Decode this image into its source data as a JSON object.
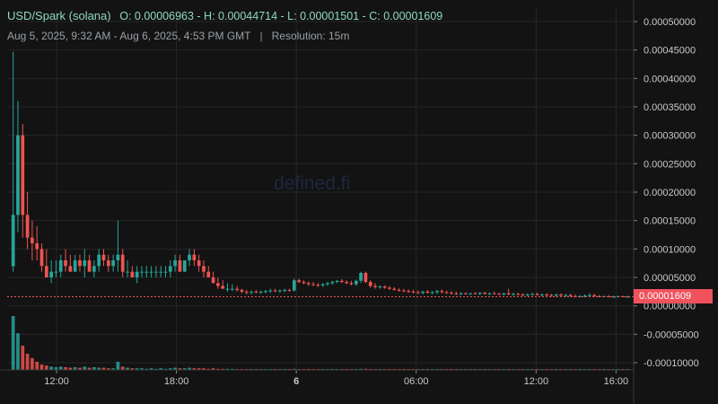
{
  "header": {
    "pair": "USD/Spark (solana)",
    "ohlc": "O: 0.00006963 - H: 0.00044714 - L: 0.00001501 - C: 0.00001609",
    "range": "Aug 5, 2025, 9:32 AM - Aug 6, 2025, 4:53 PM GMT",
    "separator": "|",
    "resolution": "Resolution: 15m"
  },
  "watermark": "defined.fi",
  "last_price_label": "0.00001609",
  "colors": {
    "background": "#131313",
    "grid": "#262626",
    "up": "#26a69a",
    "down": "#ef5350",
    "text": "#c8c8c8",
    "last_price": "#f0525d"
  },
  "chart_data": {
    "type": "candlestick",
    "y_ticks": [
      "0.00050000",
      "0.00045000",
      "0.00040000",
      "0.00035000",
      "0.00030000",
      "0.00025000",
      "0.00020000",
      "0.00015000",
      "0.00010000",
      "0.00005000",
      "0.00000000",
      "-0.00005000",
      "-0.00010000"
    ],
    "y_tick_values": [
      0.0005,
      0.00045,
      0.0004,
      0.00035,
      0.0003,
      0.00025,
      0.0002,
      0.00015,
      0.0001,
      5e-05,
      0,
      -5e-05,
      -0.0001
    ],
    "ylim": [
      -0.00011,
      0.00052
    ],
    "x_ticks": [
      {
        "label": "12:00",
        "hours": 2.47
      },
      {
        "label": "18:00",
        "hours": 8.47
      },
      {
        "label": "6",
        "hours": 14.47,
        "bold": true
      },
      {
        "label": "06:00",
        "hours": 20.47
      },
      {
        "label": "12:00",
        "hours": 26.47
      },
      {
        "label": "16:00",
        "hours": 30.47
      }
    ],
    "x_range_hours": [
      0,
      31.35
    ],
    "last_price": 1.609e-05,
    "grid": true,
    "candles": [
      {
        "o": 6.963e-05,
        "h": 0.00044714,
        "l": 6e-05,
        "c": 0.00016,
        "v": 1.0
      },
      {
        "o": 0.00016,
        "h": 0.00036,
        "l": 0.00013,
        "c": 0.0003,
        "v": 0.68
      },
      {
        "o": 0.0003,
        "h": 0.00032,
        "l": 0.00012,
        "c": 0.00016,
        "v": 0.45
      },
      {
        "o": 0.00016,
        "h": 0.0002,
        "l": 0.0001,
        "c": 0.00012,
        "v": 0.3
      },
      {
        "o": 0.00012,
        "h": 0.00015,
        "l": 8e-05,
        "c": 0.00011,
        "v": 0.22
      },
      {
        "o": 0.00011,
        "h": 0.00014,
        "l": 8e-05,
        "c": 0.0001,
        "v": 0.15
      },
      {
        "o": 0.0001,
        "h": 0.00011,
        "l": 6e-05,
        "c": 7e-05,
        "v": 0.1
      },
      {
        "o": 7e-05,
        "h": 0.0001,
        "l": 5e-05,
        "c": 5e-05,
        "v": 0.08
      },
      {
        "o": 5e-05,
        "h": 8e-05,
        "l": 4e-05,
        "c": 6e-05,
        "v": 0.06
      },
      {
        "o": 6e-05,
        "h": 8e-05,
        "l": 5e-05,
        "c": 6e-05,
        "v": 0.05
      },
      {
        "o": 6e-05,
        "h": 9e-05,
        "l": 5e-05,
        "c": 8e-05,
        "v": 0.06
      },
      {
        "o": 8e-05,
        "h": 0.0001,
        "l": 6e-05,
        "c": 7e-05,
        "v": 0.05
      },
      {
        "o": 7e-05,
        "h": 9e-05,
        "l": 6e-05,
        "c": 6e-05,
        "v": 0.04
      },
      {
        "o": 6e-05,
        "h": 9e-05,
        "l": 6e-05,
        "c": 8e-05,
        "v": 0.05
      },
      {
        "o": 8e-05,
        "h": 9e-05,
        "l": 6e-05,
        "c": 7e-05,
        "v": 0.04
      },
      {
        "o": 7e-05,
        "h": 0.0001,
        "l": 5e-05,
        "c": 8e-05,
        "v": 0.06
      },
      {
        "o": 8e-05,
        "h": 9e-05,
        "l": 6e-05,
        "c": 6e-05,
        "v": 0.04
      },
      {
        "o": 6e-05,
        "h": 8e-05,
        "l": 5e-05,
        "c": 7e-05,
        "v": 0.05
      },
      {
        "o": 7e-05,
        "h": 0.0001,
        "l": 6e-05,
        "c": 9e-05,
        "v": 0.04
      },
      {
        "o": 9e-05,
        "h": 0.0001,
        "l": 7e-05,
        "c": 8e-05,
        "v": 0.04
      },
      {
        "o": 8e-05,
        "h": 9e-05,
        "l": 6e-05,
        "c": 7e-05,
        "v": 0.03
      },
      {
        "o": 7e-05,
        "h": 9e-05,
        "l": 6e-05,
        "c": 8e-05,
        "v": 0.03
      },
      {
        "o": 8e-05,
        "h": 0.00015,
        "l": 6e-05,
        "c": 9e-05,
        "v": 0.15
      },
      {
        "o": 9e-05,
        "h": 0.0001,
        "l": 5e-05,
        "c": 6e-05,
        "v": 0.06
      },
      {
        "o": 6e-05,
        "h": 8e-05,
        "l": 5e-05,
        "c": 6e-05,
        "v": 0.04
      },
      {
        "o": 6e-05,
        "h": 7e-05,
        "l": 5e-05,
        "c": 5e-05,
        "v": 0.03
      },
      {
        "o": 5e-05,
        "h": 7e-05,
        "l": 4e-05,
        "c": 6e-05,
        "v": 0.03
      },
      {
        "o": 6e-05,
        "h": 7e-05,
        "l": 5e-05,
        "c": 6e-05,
        "v": 0.03
      },
      {
        "o": 6e-05,
        "h": 7e-05,
        "l": 5e-05,
        "c": 6e-05,
        "v": 0.02
      },
      {
        "o": 6e-05,
        "h": 7e-05,
        "l": 5e-05,
        "c": 6e-05,
        "v": 0.03
      },
      {
        "o": 6e-05,
        "h": 7e-05,
        "l": 5e-05,
        "c": 6e-05,
        "v": 0.02
      },
      {
        "o": 6e-05,
        "h": 7e-05,
        "l": 5e-05,
        "c": 6e-05,
        "v": 0.03
      },
      {
        "o": 6e-05,
        "h": 7e-05,
        "l": 5e-05,
        "c": 6e-05,
        "v": 0.02
      },
      {
        "o": 6e-05,
        "h": 8e-05,
        "l": 5e-05,
        "c": 7e-05,
        "v": 0.03
      },
      {
        "o": 7e-05,
        "h": 9e-05,
        "l": 6e-05,
        "c": 8e-05,
        "v": 0.04
      },
      {
        "o": 8e-05,
        "h": 9e-05,
        "l": 6e-05,
        "c": 6e-05,
        "v": 0.03
      },
      {
        "o": 6e-05,
        "h": 8e-05,
        "l": 6e-05,
        "c": 8e-05,
        "v": 0.03
      },
      {
        "o": 8e-05,
        "h": 0.0001,
        "l": 7e-05,
        "c": 9e-05,
        "v": 0.04
      },
      {
        "o": 9e-05,
        "h": 0.0001,
        "l": 7e-05,
        "c": 8e-05,
        "v": 0.03
      },
      {
        "o": 8e-05,
        "h": 9e-05,
        "l": 6e-05,
        "c": 7e-05,
        "v": 0.03
      },
      {
        "o": 7e-05,
        "h": 8e-05,
        "l": 5e-05,
        "c": 6e-05,
        "v": 0.03
      },
      {
        "o": 6e-05,
        "h": 7e-05,
        "l": 5e-05,
        "c": 5e-05,
        "v": 0.02
      },
      {
        "o": 5e-05,
        "h": 6e-05,
        "l": 4e-05,
        "c": 4e-05,
        "v": 0.03
      },
      {
        "o": 4e-05,
        "h": 5e-05,
        "l": 3e-05,
        "c": 3.5e-05,
        "v": 0.02
      },
      {
        "o": 3.5e-05,
        "h": 4.5e-05,
        "l": 3e-05,
        "c": 3e-05,
        "v": 0.02
      },
      {
        "o": 3e-05,
        "h": 4e-05,
        "l": 2.5e-05,
        "c": 3e-05,
        "v": 0.02
      },
      {
        "o": 3e-05,
        "h": 3.8e-05,
        "l": 2.6e-05,
        "c": 3e-05,
        "v": 0.02
      },
      {
        "o": 3e-05,
        "h": 3.5e-05,
        "l": 2.5e-05,
        "c": 2.8e-05,
        "v": 0.015
      },
      {
        "o": 2.8e-05,
        "h": 3e-05,
        "l": 2.2e-05,
        "c": 2.5e-05,
        "v": 0.015
      },
      {
        "o": 2.5e-05,
        "h": 2.8e-05,
        "l": 2e-05,
        "c": 2.4e-05,
        "v": 0.015
      },
      {
        "o": 2.4e-05,
        "h": 2.7e-05,
        "l": 2e-05,
        "c": 2.5e-05,
        "v": 0.015
      },
      {
        "o": 2.5e-05,
        "h": 2.8e-05,
        "l": 2.2e-05,
        "c": 2.4e-05,
        "v": 0.012
      },
      {
        "o": 2.4e-05,
        "h": 2.7e-05,
        "l": 2.1e-05,
        "c": 2.5e-05,
        "v": 0.012
      },
      {
        "o": 2.5e-05,
        "h": 2.8e-05,
        "l": 2.2e-05,
        "c": 2.6e-05,
        "v": 0.012
      },
      {
        "o": 2.6e-05,
        "h": 3e-05,
        "l": 2.3e-05,
        "c": 2.7e-05,
        "v": 0.012
      },
      {
        "o": 2.7e-05,
        "h": 3e-05,
        "l": 2.4e-05,
        "c": 2.6e-05,
        "v": 0.012
      },
      {
        "o": 2.6e-05,
        "h": 2.9e-05,
        "l": 2.3e-05,
        "c": 2.7e-05,
        "v": 0.012
      },
      {
        "o": 2.7e-05,
        "h": 3e-05,
        "l": 2.4e-05,
        "c": 2.8e-05,
        "v": 0.012
      },
      {
        "o": 2.8e-05,
        "h": 3e-05,
        "l": 2.5e-05,
        "c": 2.7e-05,
        "v": 0.012
      },
      {
        "o": 2.7e-05,
        "h": 4.8e-05,
        "l": 2.5e-05,
        "c": 4.5e-05,
        "v": 0.02
      },
      {
        "o": 4.5e-05,
        "h": 4.8e-05,
        "l": 4e-05,
        "c": 4.2e-05,
        "v": 0.015
      },
      {
        "o": 4.2e-05,
        "h": 4.5e-05,
        "l": 3.8e-05,
        "c": 4e-05,
        "v": 0.015
      },
      {
        "o": 4e-05,
        "h": 4.3e-05,
        "l": 3.5e-05,
        "c": 3.8e-05,
        "v": 0.012
      },
      {
        "o": 3.8e-05,
        "h": 4.2e-05,
        "l": 3.5e-05,
        "c": 3.7e-05,
        "v": 0.012
      },
      {
        "o": 3.7e-05,
        "h": 4e-05,
        "l": 3.3e-05,
        "c": 3.6e-05,
        "v": 0.012
      },
      {
        "o": 3.6e-05,
        "h": 4e-05,
        "l": 3.3e-05,
        "c": 3.8e-05,
        "v": 0.012
      },
      {
        "o": 3.8e-05,
        "h": 4.2e-05,
        "l": 3.5e-05,
        "c": 4e-05,
        "v": 0.012
      },
      {
        "o": 4e-05,
        "h": 4.4e-05,
        "l": 3.7e-05,
        "c": 4.2e-05,
        "v": 0.012
      },
      {
        "o": 4.2e-05,
        "h": 4.5e-05,
        "l": 4e-05,
        "c": 4.4e-05,
        "v": 0.012
      },
      {
        "o": 4.4e-05,
        "h": 4.7e-05,
        "l": 4e-05,
        "c": 4.2e-05,
        "v": 0.012
      },
      {
        "o": 4.2e-05,
        "h": 4.5e-05,
        "l": 3.8e-05,
        "c": 4e-05,
        "v": 0.012
      },
      {
        "o": 4e-05,
        "h": 4.4e-05,
        "l": 3.6e-05,
        "c": 3.8e-05,
        "v": 0.012
      },
      {
        "o": 3.8e-05,
        "h": 4.6e-05,
        "l": 3.5e-05,
        "c": 4.4e-05,
        "v": 0.015
      },
      {
        "o": 4.4e-05,
        "h": 6e-05,
        "l": 4e-05,
        "c": 5.8e-05,
        "v": 0.02
      },
      {
        "o": 5.8e-05,
        "h": 6e-05,
        "l": 4e-05,
        "c": 4.2e-05,
        "v": 0.02
      },
      {
        "o": 4.2e-05,
        "h": 4.5e-05,
        "l": 3.2e-05,
        "c": 3.5e-05,
        "v": 0.015
      },
      {
        "o": 3.5e-05,
        "h": 4e-05,
        "l": 3e-05,
        "c": 3.3e-05,
        "v": 0.012
      },
      {
        "o": 3.3e-05,
        "h": 3.6e-05,
        "l": 3e-05,
        "c": 3.4e-05,
        "v": 0.012
      },
      {
        "o": 3.4e-05,
        "h": 3.6e-05,
        "l": 3e-05,
        "c": 3.2e-05,
        "v": 0.01
      },
      {
        "o": 3.2e-05,
        "h": 3.5e-05,
        "l": 2.8e-05,
        "c": 3e-05,
        "v": 0.01
      },
      {
        "o": 3e-05,
        "h": 3.3e-05,
        "l": 2.7e-05,
        "c": 2.8e-05,
        "v": 0.01
      },
      {
        "o": 2.8e-05,
        "h": 3.1e-05,
        "l": 2.5e-05,
        "c": 2.7e-05,
        "v": 0.01
      },
      {
        "o": 2.7e-05,
        "h": 3e-05,
        "l": 2.4e-05,
        "c": 2.6e-05,
        "v": 0.01
      },
      {
        "o": 2.6e-05,
        "h": 2.9e-05,
        "l": 2.3e-05,
        "c": 2.5e-05,
        "v": 0.01
      },
      {
        "o": 2.5e-05,
        "h": 2.8e-05,
        "l": 2.2e-05,
        "c": 2.4e-05,
        "v": 0.01
      },
      {
        "o": 2.4e-05,
        "h": 2.7e-05,
        "l": 2.1e-05,
        "c": 2.3e-05,
        "v": 0.01
      },
      {
        "o": 2.3e-05,
        "h": 2.6e-05,
        "l": 2e-05,
        "c": 2.5e-05,
        "v": 0.01
      },
      {
        "o": 2.5e-05,
        "h": 2.8e-05,
        "l": 2.2e-05,
        "c": 2.3e-05,
        "v": 0.01
      },
      {
        "o": 2.3e-05,
        "h": 2.6e-05,
        "l": 2e-05,
        "c": 2.4e-05,
        "v": 0.01
      },
      {
        "o": 2.4e-05,
        "h": 2.8e-05,
        "l": 2.1e-05,
        "c": 2.6e-05,
        "v": 0.01
      },
      {
        "o": 2.6e-05,
        "h": 2.9e-05,
        "l": 2.2e-05,
        "c": 2.4e-05,
        "v": 0.01
      },
      {
        "o": 2.4e-05,
        "h": 2.7e-05,
        "l": 2.1e-05,
        "c": 2.3e-05,
        "v": 0.01
      },
      {
        "o": 2.3e-05,
        "h": 2.6e-05,
        "l": 2e-05,
        "c": 2.2e-05,
        "v": 0.01
      },
      {
        "o": 2.2e-05,
        "h": 2.5e-05,
        "l": 1.9e-05,
        "c": 2.1e-05,
        "v": 0.01
      },
      {
        "o": 2.1e-05,
        "h": 2.4e-05,
        "l": 1.9e-05,
        "c": 2.2e-05,
        "v": 0.01
      },
      {
        "o": 2.2e-05,
        "h": 2.4e-05,
        "l": 2e-05,
        "c": 2.1e-05,
        "v": 0.01
      },
      {
        "o": 2.1e-05,
        "h": 2.3e-05,
        "l": 1.9e-05,
        "c": 2.2e-05,
        "v": 0.01
      },
      {
        "o": 2.2e-05,
        "h": 2.4e-05,
        "l": 2e-05,
        "c": 2.1e-05,
        "v": 0.01
      },
      {
        "o": 2.1e-05,
        "h": 2.4e-05,
        "l": 1.9e-05,
        "c": 2.3e-05,
        "v": 0.01
      },
      {
        "o": 2.3e-05,
        "h": 2.5e-05,
        "l": 2e-05,
        "c": 2.1e-05,
        "v": 0.01
      },
      {
        "o": 2.1e-05,
        "h": 2.4e-05,
        "l": 1.9e-05,
        "c": 2.2e-05,
        "v": 0.01
      },
      {
        "o": 2.2e-05,
        "h": 2.5e-05,
        "l": 2e-05,
        "c": 2.1e-05,
        "v": 0.01
      },
      {
        "o": 2.1e-05,
        "h": 2.3e-05,
        "l": 1.9e-05,
        "c": 2e-05,
        "v": 0.01
      },
      {
        "o": 2e-05,
        "h": 2.3e-05,
        "l": 1.8e-05,
        "c": 2.2e-05,
        "v": 0.01
      },
      {
        "o": 2.2e-05,
        "h": 3e-05,
        "l": 1.9e-05,
        "c": 2e-05,
        "v": 0.012
      },
      {
        "o": 2e-05,
        "h": 2.3e-05,
        "l": 1.8e-05,
        "c": 2.1e-05,
        "v": 0.01
      },
      {
        "o": 2.1e-05,
        "h": 2.3e-05,
        "l": 1.8e-05,
        "c": 2e-05,
        "v": 0.01
      },
      {
        "o": 2e-05,
        "h": 2.2e-05,
        "l": 1.7e-05,
        "c": 1.9e-05,
        "v": 0.01
      },
      {
        "o": 1.9e-05,
        "h": 2.2e-05,
        "l": 1.7e-05,
        "c": 2e-05,
        "v": 0.01
      },
      {
        "o": 2e-05,
        "h": 2.3e-05,
        "l": 1.8e-05,
        "c": 2.1e-05,
        "v": 0.01
      },
      {
        "o": 2.1e-05,
        "h": 2.3e-05,
        "l": 1.8e-05,
        "c": 1.9e-05,
        "v": 0.01
      },
      {
        "o": 1.9e-05,
        "h": 2.2e-05,
        "l": 1.7e-05,
        "c": 2e-05,
        "v": 0.01
      },
      {
        "o": 2e-05,
        "h": 2.2e-05,
        "l": 1.7e-05,
        "c": 1.9e-05,
        "v": 0.01
      },
      {
        "o": 1.9e-05,
        "h": 2.1e-05,
        "l": 1.6e-05,
        "c": 1.8e-05,
        "v": 0.01
      },
      {
        "o": 1.8e-05,
        "h": 2.1e-05,
        "l": 1.6e-05,
        "c": 2e-05,
        "v": 0.01
      },
      {
        "o": 2e-05,
        "h": 2.2e-05,
        "l": 1.7e-05,
        "c": 1.8e-05,
        "v": 0.01
      },
      {
        "o": 1.8e-05,
        "h": 2.1e-05,
        "l": 1.6e-05,
        "c": 1.9e-05,
        "v": 0.01
      },
      {
        "o": 1.9e-05,
        "h": 2.1e-05,
        "l": 1.6e-05,
        "c": 1.7e-05,
        "v": 0.01
      },
      {
        "o": 1.7e-05,
        "h": 2e-05,
        "l": 1.5e-05,
        "c": 1.6e-05,
        "v": 0.01
      },
      {
        "o": 1.6e-05,
        "h": 1.9e-05,
        "l": 1.5e-05,
        "c": 1.7e-05,
        "v": 0.01
      },
      {
        "o": 1.7e-05,
        "h": 2e-05,
        "l": 1.5e-05,
        "c": 1.8e-05,
        "v": 0.01
      },
      {
        "o": 1.8e-05,
        "h": 2.2e-05,
        "l": 1.6e-05,
        "c": 1.9e-05,
        "v": 0.01
      },
      {
        "o": 1.9e-05,
        "h": 2.1e-05,
        "l": 1.6e-05,
        "c": 1.7e-05,
        "v": 0.01
      },
      {
        "o": 1.7e-05,
        "h": 1.9e-05,
        "l": 1.5e-05,
        "c": 1.6e-05,
        "v": 0.01
      },
      {
        "o": 1.6e-05,
        "h": 1.8e-05,
        "l": 1.5e-05,
        "c": 1.7e-05,
        "v": 0.01
      },
      {
        "o": 1.7e-05,
        "h": 1.9e-05,
        "l": 1.5e-05,
        "c": 1.6e-05,
        "v": 0.01
      },
      {
        "o": 1.6e-05,
        "h": 1.8e-05,
        "l": 1.5e-05,
        "c": 1.6e-05,
        "v": 0.01
      },
      {
        "o": 1.6e-05,
        "h": 1.8e-05,
        "l": 1.5e-05,
        "c": 1.7e-05,
        "v": 0.01
      },
      {
        "o": 1.7e-05,
        "h": 1.8e-05,
        "l": 1.5e-05,
        "c": 1.6e-05,
        "v": 0.01
      },
      {
        "o": 1.6e-05,
        "h": 1.8e-05,
        "l": 1.5e-05,
        "c": 1.609e-05,
        "v": 0.01
      }
    ]
  }
}
